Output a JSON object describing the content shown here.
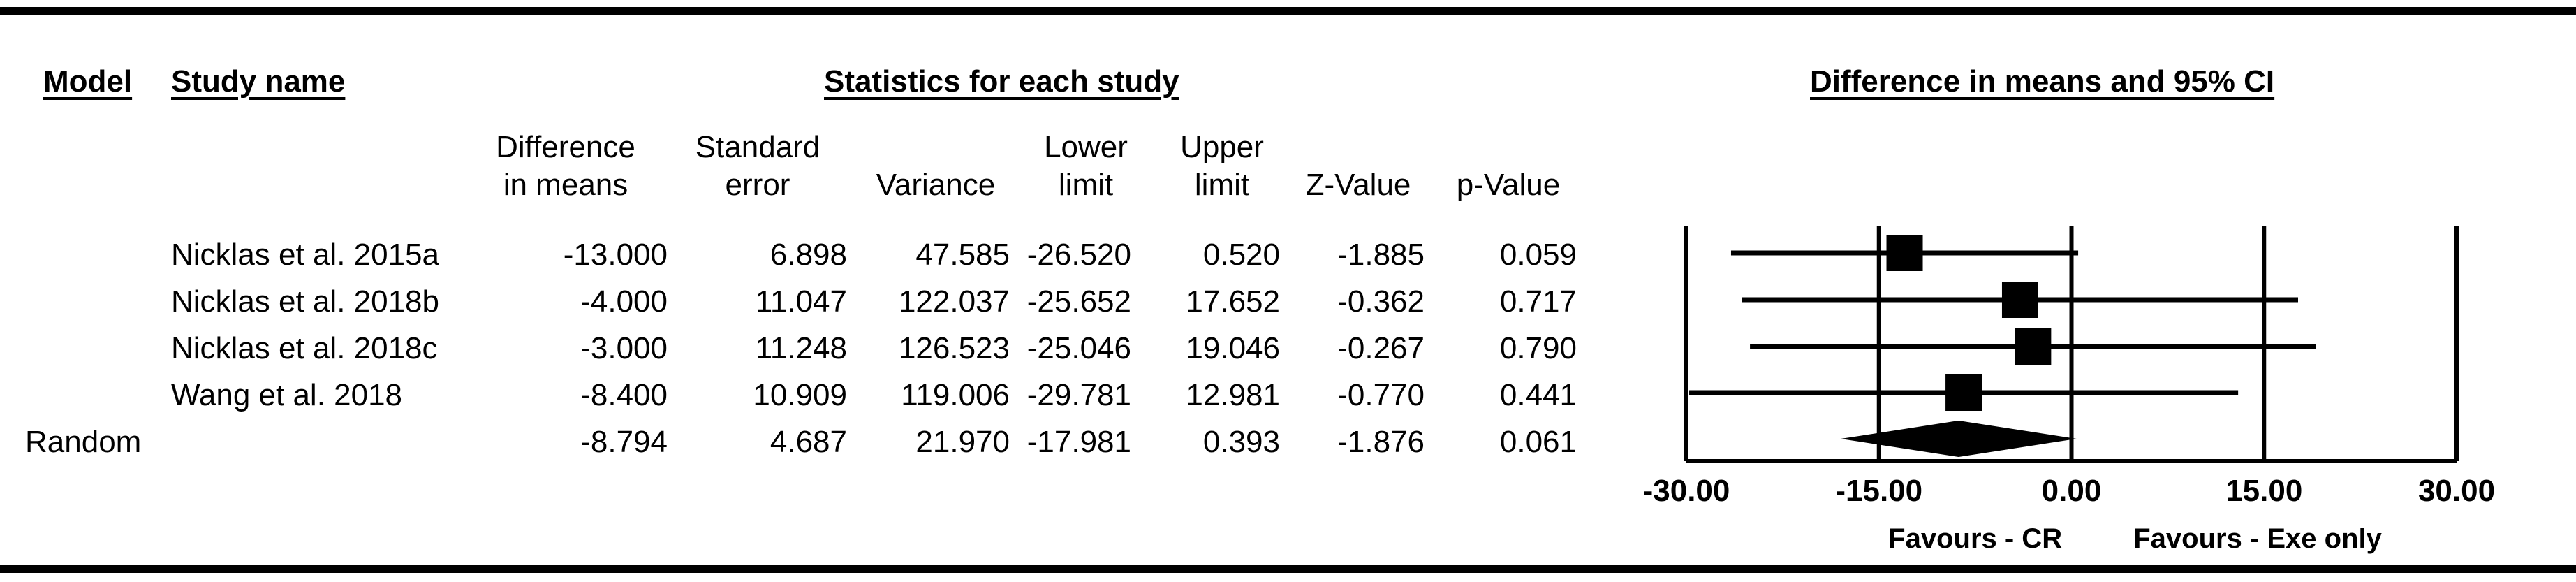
{
  "headers": {
    "model": "Model",
    "study_name": "Study name",
    "statistics": "Statistics for each study",
    "plot": "Difference in means and 95% CI"
  },
  "columns": [
    {
      "line1": "Difference",
      "line2": "in means"
    },
    {
      "line1": "Standard",
      "line2": "error"
    },
    {
      "line1": "",
      "line2": "Variance"
    },
    {
      "line1": "Lower",
      "line2": "limit"
    },
    {
      "line1": "Upper",
      "line2": "limit"
    },
    {
      "line1": "",
      "line2": "Z-Value"
    },
    {
      "line1": "",
      "line2": "p-Value"
    }
  ],
  "rows": [
    {
      "model": "",
      "name": "Nicklas et al. 2015a",
      "values": [
        "-13.000",
        "6.898",
        "47.585",
        "-26.520",
        "0.520",
        "-1.885",
        "0.059"
      ]
    },
    {
      "model": "",
      "name": "Nicklas et al. 2018b",
      "values": [
        "-4.000",
        "11.047",
        "122.037",
        "-25.652",
        "17.652",
        "-0.362",
        "0.717"
      ]
    },
    {
      "model": "",
      "name": "Nicklas et al. 2018c",
      "values": [
        "-3.000",
        "11.248",
        "126.523",
        "-25.046",
        "19.046",
        "-0.267",
        "0.790"
      ]
    },
    {
      "model": "",
      "name": "Wang et al. 2018",
      "values": [
        "-8.400",
        "10.909",
        "119.006",
        "-29.781",
        "12.981",
        "-0.770",
        "0.441"
      ]
    },
    {
      "model": "Random",
      "name": "",
      "values": [
        "-8.794",
        "4.687",
        "21.970",
        "-17.981",
        "0.393",
        "-1.876",
        "0.061"
      ]
    }
  ],
  "chart_data": {
    "type": "forest",
    "title": "Difference in means and 95% CI",
    "xlim": [
      -30,
      30
    ],
    "xticks": [
      -30,
      -15,
      0,
      15,
      30
    ],
    "xtick_labels": [
      "-30.00",
      "-15.00",
      "0.00",
      "15.00",
      "30.00"
    ],
    "favours_left": "Favours - CR",
    "favours_right": "Favours - Exe only",
    "studies": [
      {
        "name": "Nicklas et al. 2015a",
        "estimate": -13.0,
        "lower": -26.52,
        "upper": 0.52
      },
      {
        "name": "Nicklas et al. 2018b",
        "estimate": -4.0,
        "lower": -25.652,
        "upper": 17.652
      },
      {
        "name": "Nicklas et al. 2018c",
        "estimate": -3.0,
        "lower": -25.046,
        "upper": 19.046
      },
      {
        "name": "Wang et al. 2018",
        "estimate": -8.4,
        "lower": -29.781,
        "upper": 12.981
      }
    ],
    "summary": {
      "name": "Random",
      "estimate": -8.794,
      "lower": -17.981,
      "upper": 0.393
    }
  }
}
